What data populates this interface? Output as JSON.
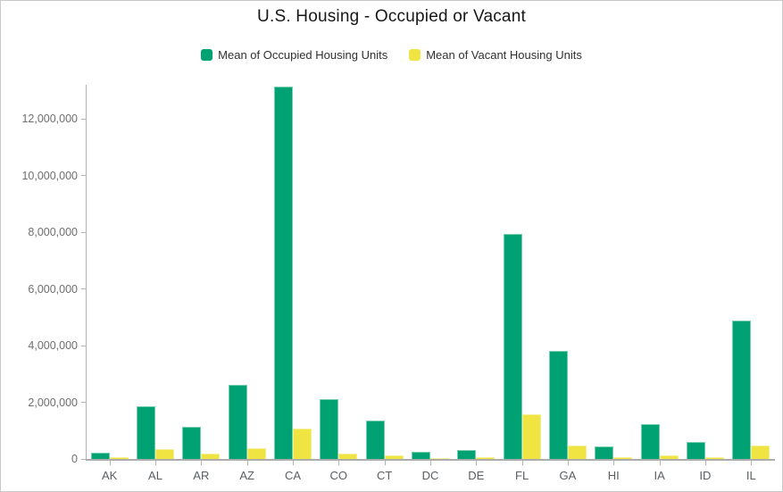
{
  "chart_data": {
    "type": "bar",
    "title": "U.S. Housing - Occupied or Vacant",
    "xlabel": "",
    "ylabel": "",
    "grid": false,
    "legend_position": "top",
    "categories": [
      "AK",
      "AL",
      "AR",
      "AZ",
      "CA",
      "CO",
      "CT",
      "DC",
      "DE",
      "FL",
      "GA",
      "HI",
      "IA",
      "ID",
      "IL"
    ],
    "series": [
      {
        "name": "Mean of Occupied Housing Units",
        "color": "#00a173",
        "edge_color": "#74ceac",
        "values": [
          230000,
          1860000,
          1130000,
          2610000,
          13150000,
          2100000,
          1350000,
          250000,
          330000,
          7930000,
          3820000,
          430000,
          1230000,
          600000,
          4870000
        ]
      },
      {
        "name": "Mean of Vacant Housing Units",
        "color": "#f0e442",
        "edge_color": "#f5ef94",
        "values": [
          60000,
          360000,
          180000,
          370000,
          1070000,
          200000,
          130000,
          30000,
          60000,
          1590000,
          460000,
          50000,
          120000,
          70000,
          460000
        ]
      }
    ],
    "ylim": [
      0,
      13200000
    ],
    "y_ticks": [
      0,
      2000000,
      4000000,
      6000000,
      8000000,
      10000000,
      12000000
    ],
    "y_tick_labels": [
      "0",
      "2,000,000",
      "4,000,000",
      "6,000,000",
      "8,000,000",
      "10,000,000",
      "12,000,000"
    ],
    "axis_color": "#b2b2b2",
    "baseline_color": "#acacac"
  }
}
